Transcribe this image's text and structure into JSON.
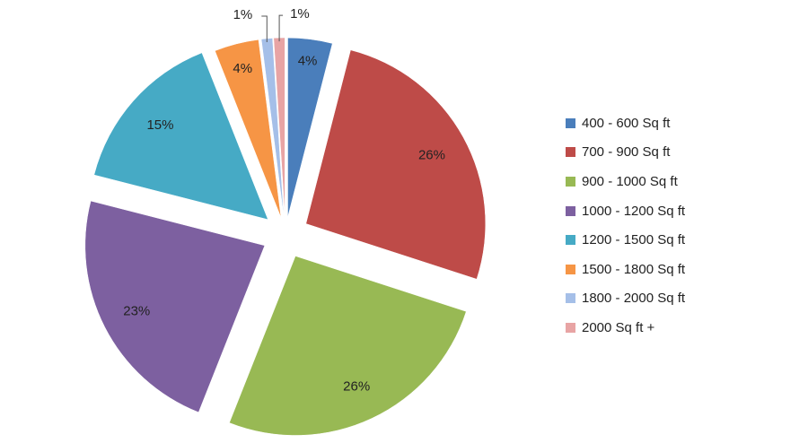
{
  "chart_data": {
    "type": "pie",
    "exploded": true,
    "slices": [
      {
        "label": "400 - 600 Sq ft",
        "value": 4,
        "display": "4%",
        "color": "#4a7ebb"
      },
      {
        "label": "700 - 900 Sq ft",
        "value": 26,
        "display": "26%",
        "color": "#be4b48"
      },
      {
        "label": "900 - 1000 Sq ft",
        "value": 26,
        "display": "26%",
        "color": "#98b954"
      },
      {
        "label": "1000 - 1200 Sq ft",
        "value": 23,
        "display": "23%",
        "color": "#7d60a0"
      },
      {
        "label": "1200 - 1500 Sq ft",
        "value": 15,
        "display": "15%",
        "color": "#46aac5"
      },
      {
        "label": "1500 - 1800 Sq ft",
        "value": 4,
        "display": "4%",
        "color": "#f69545"
      },
      {
        "label": "1800 - 2000 Sq ft",
        "value": 1,
        "display": "1%",
        "color": "#a5bfe8"
      },
      {
        "label": "2000 Sq ft +",
        "value": 1,
        "display": "1%",
        "color": "#e8a4a4"
      }
    ],
    "legend_position": "right"
  }
}
